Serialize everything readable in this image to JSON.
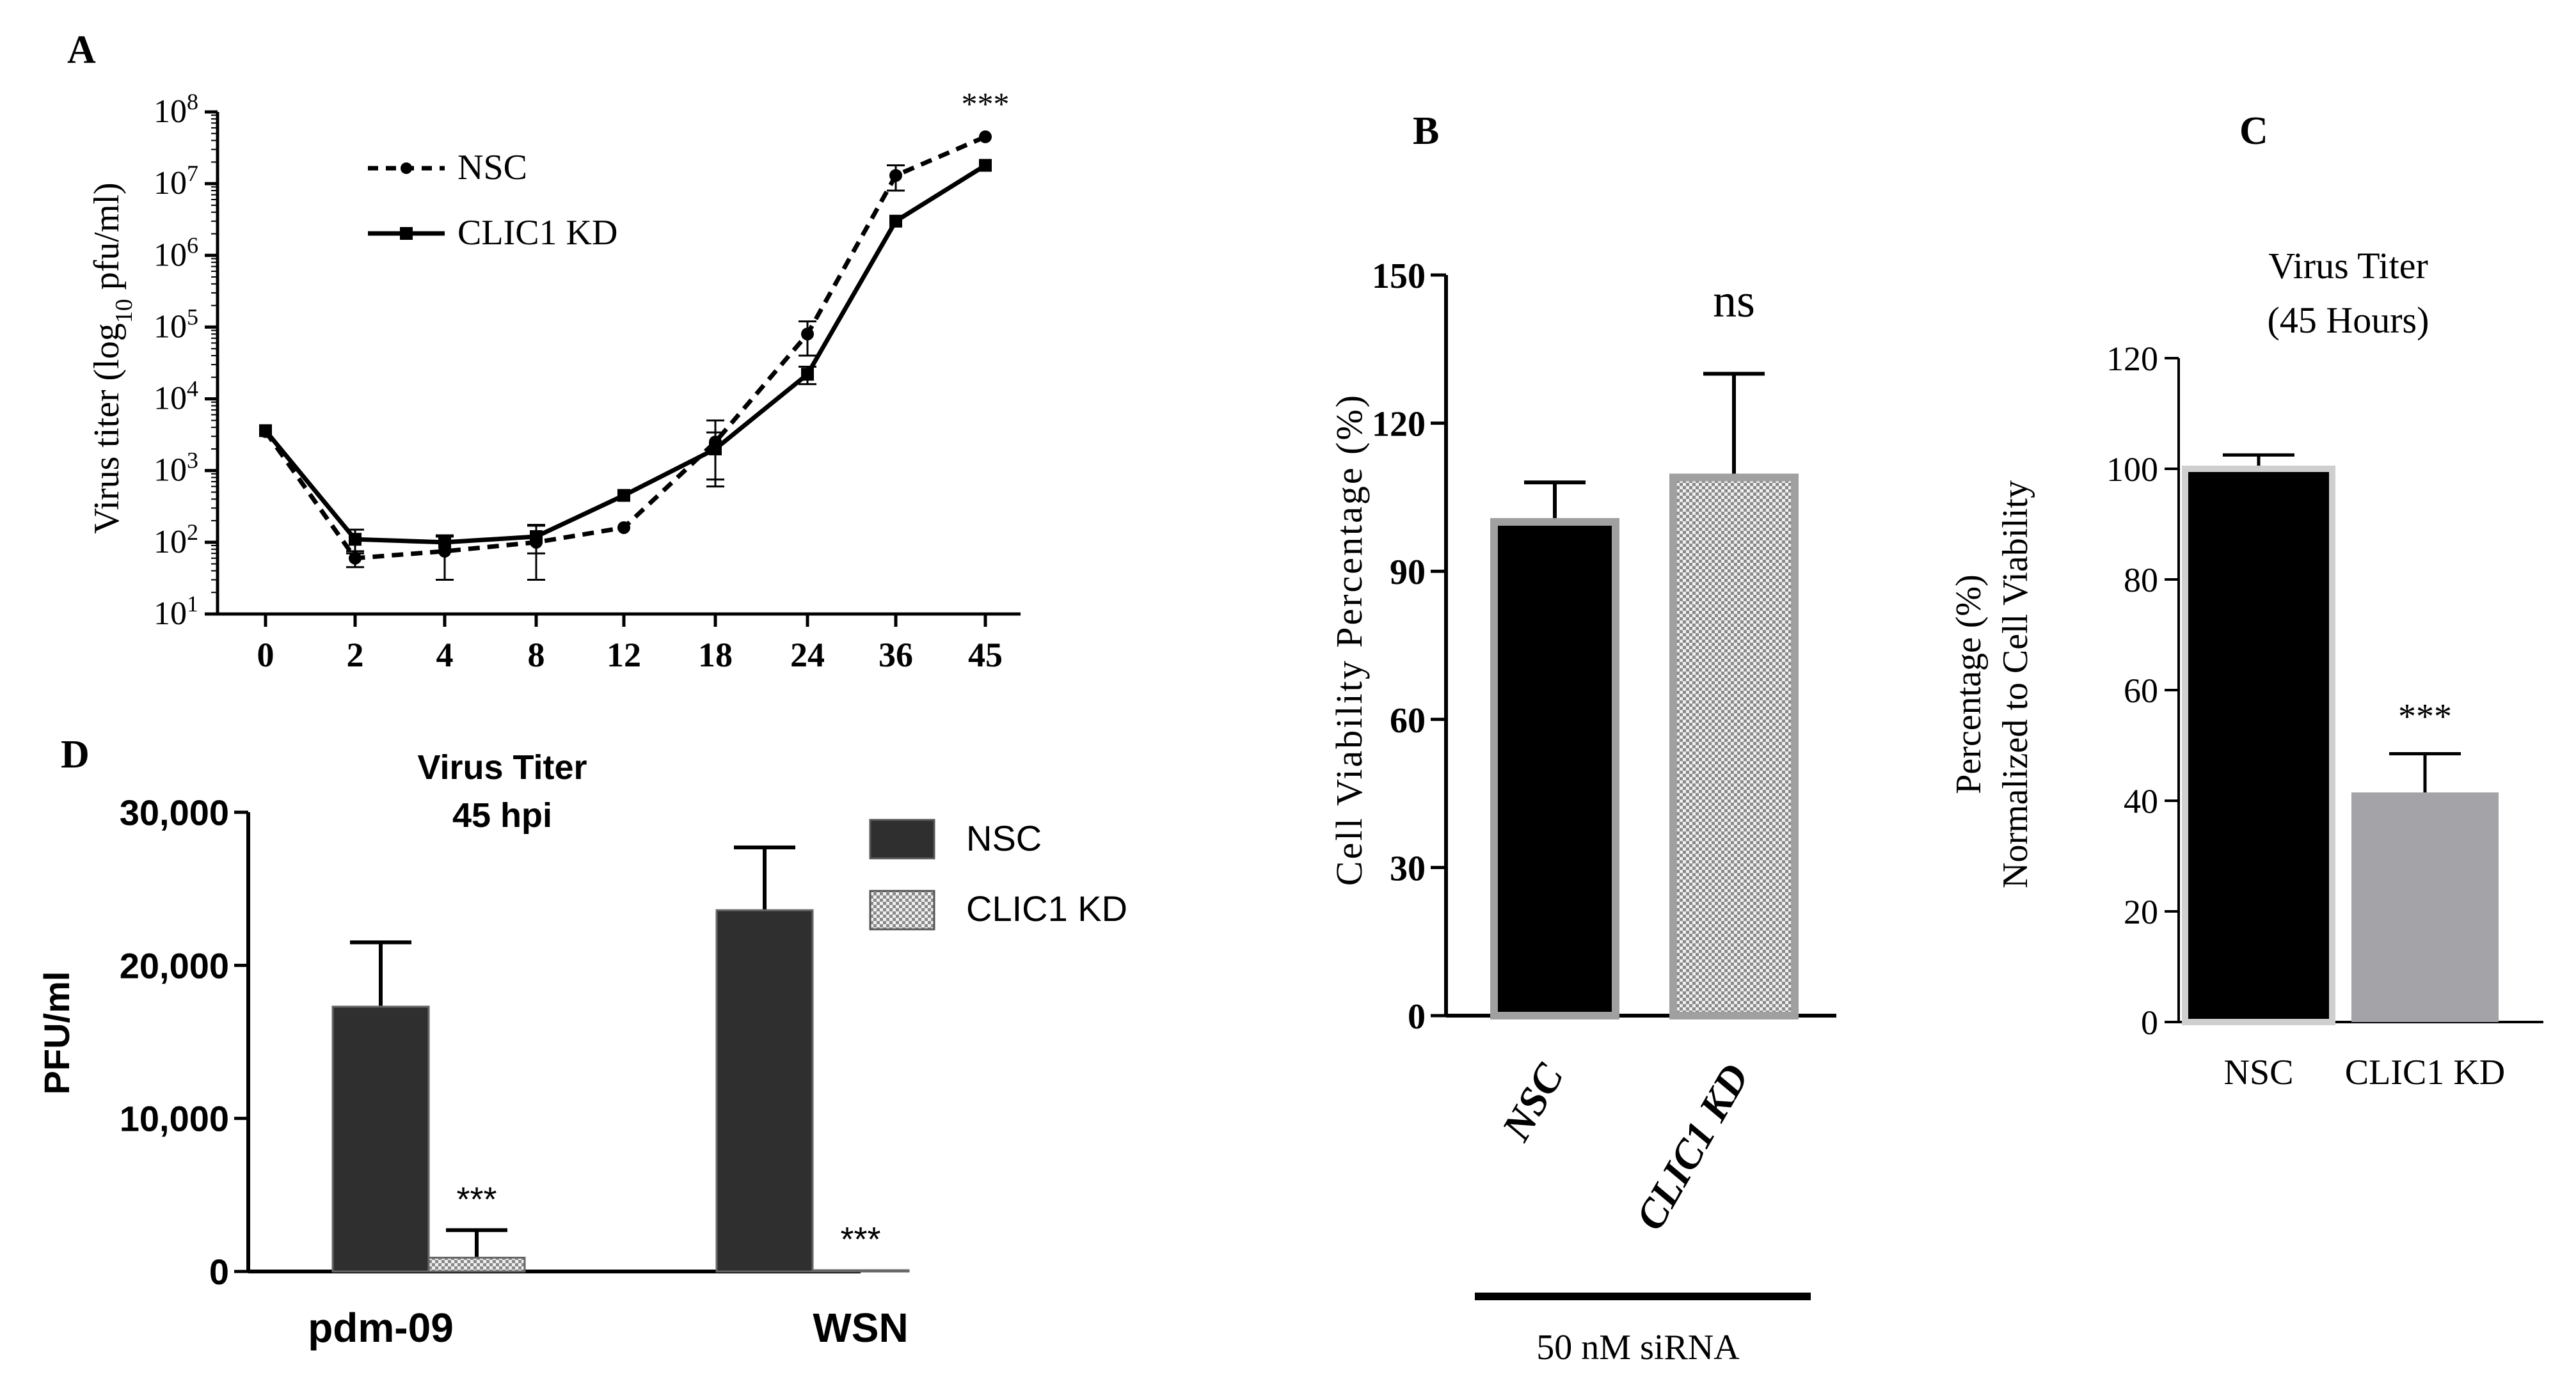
{
  "chart_data": [
    {
      "panel": "A",
      "type": "line",
      "yscale": "log",
      "categories": [
        "0",
        "2",
        "4",
        "8",
        "12",
        "18",
        "24",
        "36",
        "45"
      ],
      "ylabel": "Virus titer (log10 pfu/ml)",
      "ylabel_pre": "Virus titer (log",
      "ylabel_sub": "10",
      "ylabel_post": " pfu/ml)",
      "ylim_exponents": [
        1,
        8
      ],
      "ytick_base": "10",
      "ytick_exponents": [
        "1",
        "2",
        "3",
        "4",
        "5",
        "6",
        "7",
        "8"
      ],
      "series": [
        {
          "name": "NSC",
          "marker": "circle",
          "dash": "dashed",
          "values": [
            3500,
            60,
            75,
            100,
            160,
            2500,
            80000,
            13000000,
            45000000
          ],
          "err": [
            0,
            15,
            45,
            75,
            0,
            2500,
            40000,
            5000000,
            0
          ]
        },
        {
          "name": "CLIC1 KD",
          "marker": "square",
          "dash": "solid",
          "values": [
            3600,
            110,
            100,
            120,
            450,
            2000,
            22000,
            3000000,
            18000000
          ],
          "err": [
            0,
            40,
            25,
            50,
            0,
            1400,
            6000,
            0,
            0
          ]
        }
      ],
      "annotations": [
        {
          "category": "45",
          "text": "***"
        }
      ],
      "legend": "top-left"
    },
    {
      "panel": "B",
      "type": "bar",
      "categories": [
        "NSC",
        "CLIC1 KD"
      ],
      "values": [
        100,
        109
      ],
      "err": [
        8,
        21
      ],
      "fills": [
        "solid-black",
        "checker"
      ],
      "ylabel": "Cell Viability Percentage (%)",
      "ylim": [
        0,
        150
      ],
      "yticks": [
        0,
        30,
        60,
        90,
        120,
        150
      ],
      "annotations": [
        {
          "category": "CLIC1 KD",
          "text": "ns"
        }
      ],
      "xgroup_label": "50 nM siRNA"
    },
    {
      "panel": "C",
      "type": "bar",
      "title_lines": [
        "Virus Titer",
        "(45 Hours)"
      ],
      "categories": [
        "NSC",
        "CLIC1 KD"
      ],
      "values": [
        100,
        41.5
      ],
      "err": [
        2.5,
        7
      ],
      "colors": [
        "#000000",
        "#a3a3a8"
      ],
      "ylabel_lines": [
        "Percentage (%)",
        "Normalized to Cell Viability"
      ],
      "ylim": [
        0,
        120
      ],
      "yticks": [
        0,
        20,
        40,
        60,
        80,
        100,
        120
      ],
      "annotations": [
        {
          "category": "CLIC1 KD",
          "text": "***"
        }
      ]
    },
    {
      "panel": "D",
      "type": "bar",
      "title_lines": [
        "Virus Titer",
        "45 hpi"
      ],
      "categories": [
        "pdm-09",
        "WSN"
      ],
      "series": [
        {
          "name": "NSC",
          "color": "#2f2f2f",
          "values": [
            17300,
            23600
          ],
          "err": [
            4200,
            4100
          ]
        },
        {
          "name": "CLIC1 KD",
          "fill": "checker",
          "values": [
            900,
            80
          ],
          "err": [
            1800,
            0
          ]
        }
      ],
      "ylabel": "PFU/ml",
      "ylim": [
        0,
        30000
      ],
      "yticks": [
        0,
        10000,
        20000,
        30000
      ],
      "ytick_labels": [
        "0",
        "10,000",
        "20,000",
        "30,000"
      ],
      "annotations": [
        {
          "category": "pdm-09",
          "series": "CLIC1 KD",
          "text": "***"
        },
        {
          "category": "WSN",
          "series": "CLIC1 KD",
          "text": "***"
        }
      ],
      "legend": "top-right"
    }
  ]
}
